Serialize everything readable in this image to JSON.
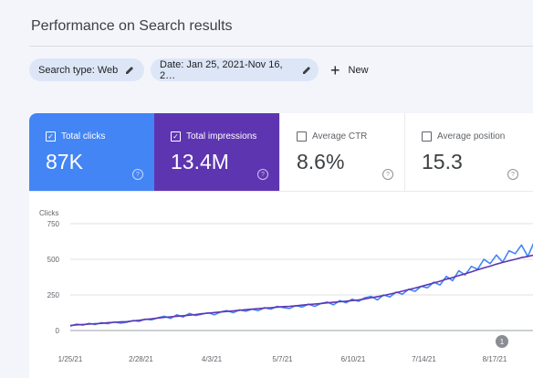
{
  "page": {
    "title": "Performance on Search results"
  },
  "filters": {
    "search_type": "Search type: Web",
    "date": "Date: Jan 25, 2021-Nov 16, 2…",
    "new_label": "New"
  },
  "metrics": [
    {
      "label": "Total clicks",
      "value": "87K",
      "checked": true,
      "color": "#4385f5"
    },
    {
      "label": "Total impressions",
      "value": "13.4M",
      "checked": true,
      "color": "#5e35b1"
    },
    {
      "label": "Average CTR",
      "value": "8.6%",
      "checked": false,
      "color": "#ffffff"
    },
    {
      "label": "Average position",
      "value": "15.3",
      "checked": false,
      "color": "#ffffff"
    }
  ],
  "chart_data": {
    "type": "line",
    "ylabel": "Clicks",
    "yticks": [
      "750",
      "500",
      "250",
      "0"
    ],
    "ylim": [
      0,
      750
    ],
    "xtick_labels": [
      "1/25/21",
      "2/28/21",
      "4/3/21",
      "5/7/21",
      "6/10/21",
      "7/14/21",
      "8/17/21"
    ],
    "annotation": "1",
    "x_range": [
      "1/25/21",
      "9/6/21"
    ],
    "series": [
      {
        "color": "#4385f5",
        "values": [
          30,
          45,
          38,
          50,
          42,
          55,
          48,
          60,
          52,
          58,
          70,
          65,
          80,
          75,
          90,
          100,
          85,
          110,
          95,
          120,
          105,
          115,
          125,
          110,
          130,
          140,
          125,
          145,
          135,
          150,
          140,
          160,
          150,
          170,
          160,
          155,
          175,
          165,
          185,
          170,
          190,
          200,
          180,
          210,
          195,
          220,
          205,
          230,
          240,
          215,
          250,
          235,
          270,
          255,
          290,
          275,
          310,
          300,
          340,
          320,
          380,
          350,
          420,
          390,
          450,
          430,
          500,
          470,
          530,
          480,
          560,
          540,
          600,
          520,
          620,
          580
        ]
      },
      {
        "color": "#5e35b1",
        "values": [
          35,
          40,
          42,
          45,
          48,
          50,
          55,
          58,
          60,
          62,
          68,
          72,
          78,
          82,
          88,
          92,
          96,
          100,
          104,
          108,
          112,
          118,
          122,
          126,
          130,
          134,
          138,
          142,
          146,
          150,
          154,
          158,
          160,
          164,
          168,
          170,
          174,
          178,
          182,
          186,
          190,
          194,
          198,
          202,
          206,
          210,
          215,
          222,
          230,
          238,
          246,
          256,
          266,
          276,
          288,
          298,
          310,
          322,
          334,
          346,
          360,
          372,
          386,
          398,
          412,
          426,
          440,
          452,
          466,
          478,
          490,
          500,
          512,
          520,
          530,
          520
        ]
      }
    ]
  }
}
